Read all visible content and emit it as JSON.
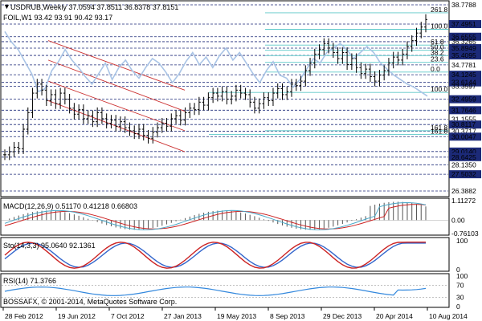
{
  "window": {
    "title": "USDRUB,Weekly",
    "ohlc_text": "37.0594 37.8511 36.8378 37.8151",
    "overlay_indicator_text": "FOIL,W1 93.42 93.91 90.42 93.17"
  },
  "main_panel": {
    "price_scale": [
      "38.7788",
      "37.4951",
      "36.6555",
      "36.3265",
      "35.8949",
      "35.4095",
      "34.7781",
      "34.1245",
      "33.6144",
      "33.3597",
      "32.4959",
      "31.7646",
      "31.1555",
      "30.8117",
      "30.3717",
      "30.0047",
      "29.0140",
      "28.6425",
      "28.1350",
      "27.5032",
      "26.3882"
    ],
    "highlighted_levels": [
      "37.4951",
      "36.6555",
      "35.8949",
      "35.4095",
      "34.1245",
      "33.6144",
      "32.4959",
      "31.7646",
      "30.8117",
      "30.0047",
      "29.0140",
      "28.6425",
      "27.5032"
    ],
    "fib_labels": [
      "261.8",
      "161.8",
      "100.0",
      "61.8",
      "50.0",
      "38.2",
      "23.6",
      "0.0",
      "100.0",
      "161.8"
    ],
    "colors": {
      "price_bars": "#000000",
      "line_series": "#a9c4e6",
      "fib_lines": "#5cc8c8",
      "channel_lines": "#cc3333",
      "dashed_levels": "#1c2a78",
      "highlight_label_bg": "#1c2a78"
    }
  },
  "macd_panel": {
    "title": "MACD(12,26,9) 0.51170 0.41218 0.66803",
    "scale": [
      "1.11272",
      "0.00",
      "-0.76103"
    ],
    "colors": {
      "histogram": "#555555",
      "signal": "#cc2222",
      "macd": "#4aa8c8"
    }
  },
  "stoch_panel": {
    "title": "Sto(14,3,3) 95.0640 92.1361",
    "scale": [
      "100",
      "0"
    ],
    "colors": {
      "main": "#cc2222",
      "signal": "#3366cc"
    }
  },
  "rsi_panel": {
    "title": "RSI(14) 71.3766",
    "scale": [
      "100",
      "70",
      "30",
      "0"
    ],
    "watermark": "BOSSAFX, © 2001-2014, MetaQuotes Software Corp.",
    "colors": {
      "line": "#3388dd"
    }
  },
  "time_axis": [
    "28 Feb 2012",
    "19 Jun 2012",
    "7 Oct 2012",
    "27 Jan 2013",
    "19 May 2013",
    "8 Sep 2013",
    "29 Dec 2013",
    "20 Apr 2014",
    "10 Aug 2014"
  ],
  "chart_data": {
    "type": "candlestick",
    "title": "USDRUB,Weekly",
    "x": [
      "28 Feb 2012",
      "19 Jun 2012",
      "7 Oct 2012",
      "27 Jan 2013",
      "19 May 2013",
      "8 Sep 2013",
      "29 Dec 2013",
      "20 Apr 2014",
      "10 Aug 2014"
    ],
    "ylim": [
      26.3882,
      38.7788
    ],
    "price_path": [
      28.8,
      29.0,
      29.3,
      29.2,
      30.5,
      31.6,
      32.9,
      33.5,
      33.1,
      32.4,
      32.8,
      32.2,
      32.9,
      32.5,
      31.9,
      31.5,
      31.8,
      31.2,
      31.4,
      31.0,
      31.6,
      31.2,
      30.9,
      31.1,
      30.7,
      31.0,
      30.6,
      30.4,
      30.2,
      30.5,
      30.1,
      29.9,
      30.3,
      30.6,
      30.9,
      30.7,
      31.2,
      31.4,
      31.1,
      31.6,
      31.9,
      31.8,
      32.3,
      32.1,
      32.6,
      32.9,
      32.7,
      33.0,
      32.5,
      32.7,
      33.1,
      32.9,
      32.8,
      32.3,
      31.9,
      32.2,
      32.6,
      32.4,
      32.9,
      33.2,
      32.8,
      33.0,
      33.5,
      33.4,
      33.7,
      34.4,
      34.9,
      35.5,
      35.8,
      36.2,
      35.9,
      35.6,
      35.2,
      35.6,
      34.8,
      35.2,
      34.6,
      34.2,
      34.5,
      34.0,
      33.7,
      34.1,
      34.4,
      34.9,
      35.3,
      35.1,
      35.5,
      36.0,
      36.4,
      36.9,
      37.3,
      37.8
    ],
    "line_series": [
      37.0,
      36.3,
      35.8,
      35.0,
      34.2,
      33.0,
      33.2,
      34.4,
      35.0,
      35.8,
      35.1,
      34.6,
      34.0,
      33.5,
      34.2,
      34.9,
      33.8,
      34.6,
      35.1,
      34.4,
      33.9,
      34.6,
      35.2,
      34.9,
      34.3,
      33.6,
      34.2,
      35.0,
      35.6,
      34.8,
      35.3,
      34.6,
      35.4,
      35.9,
      35.1,
      35.6,
      34.9,
      34.2,
      33.6,
      34.4,
      35.0,
      34.1,
      33.9,
      33.3,
      33.8,
      34.5,
      35.2,
      34.9,
      35.6,
      35.9,
      36.2,
      35.8,
      35.2,
      35.6,
      36.0,
      35.6,
      34.9,
      34.5,
      34.1,
      33.8,
      33.5,
      33.3,
      33.0,
      32.7
    ],
    "macd": {
      "macd": 0.5117,
      "signal": 0.41218,
      "histogram": 0.66803,
      "ylim": [
        -0.76103,
        1.11272
      ]
    },
    "stochastic": {
      "main": 95.064,
      "signal": 92.1361,
      "ylim": [
        0,
        100
      ]
    },
    "rsi": {
      "value": 71.3766,
      "levels": [
        70,
        30
      ],
      "ylim": [
        0,
        100
      ]
    }
  }
}
